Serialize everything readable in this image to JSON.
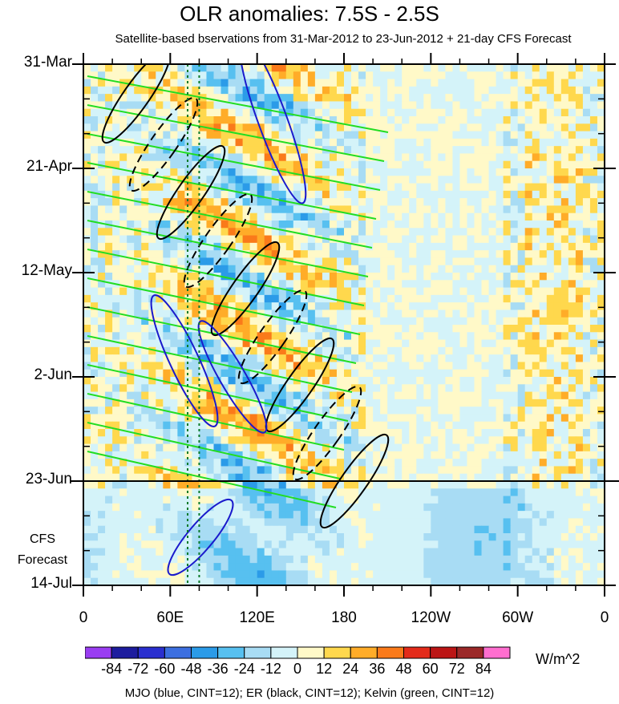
{
  "title": "OLR anomalies: 7.5S - 2.5S",
  "subtitle": "Satellite-based bservations from 31-Mar-2012 to 23-Jun-2012 + 21-day CFS Forecast",
  "chart_data": {
    "type": "heatmap",
    "title": "OLR anomalies: 7.5S - 2.5S",
    "x_axis": {
      "tick_labels": [
        "0",
        "60E",
        "120E",
        "180",
        "120W",
        "60W",
        "0"
      ],
      "tick_values_deg_east": [
        0,
        60,
        120,
        180,
        240,
        300,
        360
      ],
      "range_deg_east": [
        0,
        360
      ]
    },
    "y_axis": {
      "tick_labels": [
        "31-Mar",
        "21-Apr",
        "12-May",
        "2-Jun",
        "23-Jun",
        "14-Jul"
      ],
      "tick_values": [
        "2012-03-31",
        "2012-04-21",
        "2012-05-12",
        "2012-06-02",
        "2012-06-23",
        "2012-07-14"
      ],
      "range": [
        "2012-03-31",
        "2012-07-14"
      ],
      "direction": "time increases downward"
    },
    "forecast_start": "2012-06-23",
    "forecast_label": [
      "CFS",
      "Forecast"
    ],
    "colorbar": {
      "units": "W/m^2",
      "levels": [
        -84,
        -72,
        -60,
        -48,
        -36,
        -24,
        -12,
        0,
        12,
        24,
        36,
        48,
        60,
        72,
        84
      ],
      "level_labels": [
        "-84",
        "-72",
        "-60",
        "-48",
        "-36",
        "-24",
        "-12",
        "0",
        "12",
        "24",
        "36",
        "48",
        "60",
        "72",
        "84"
      ],
      "colors": [
        "#9a3df2",
        "#1d1c9e",
        "#2a2fcf",
        "#3c6fe0",
        "#2b9be8",
        "#57c0f0",
        "#a8dcf4",
        "#d4f3f9",
        "#fff9c8",
        "#ffd84d",
        "#ffac28",
        "#fa7a1a",
        "#e32b1a",
        "#bb1515",
        "#9b2828",
        "#ff6ecf"
      ]
    },
    "overlays": [
      {
        "name": "MJO",
        "color": "blue",
        "cint": 12
      },
      {
        "name": "ER",
        "color": "black",
        "cint": 12
      },
      {
        "name": "Kelvin",
        "color": "green",
        "cint": 12
      }
    ],
    "vertical_reference_lines_deg_east": [
      72,
      80
    ]
  },
  "footnote": "MJO (blue, CINT=12); ER (black, CINT=12); Kelvin (green, CINT=12)"
}
